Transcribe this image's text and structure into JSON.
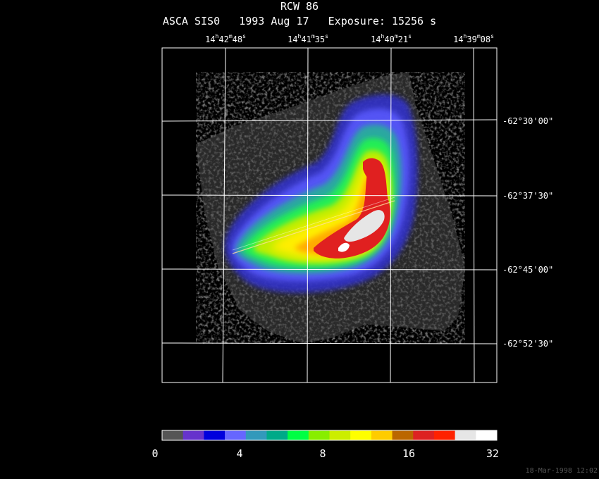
{
  "header": {
    "object": "RCW 86",
    "info": "ASCA SIS0   1993 Aug 17   Exposure: 15256 s"
  },
  "ra_ticks": [
    {
      "h": "14",
      "m": "42",
      "s": "48"
    },
    {
      "h": "14",
      "m": "41",
      "s": "35"
    },
    {
      "h": "14",
      "m": "40",
      "s": "21"
    },
    {
      "h": "14",
      "m": "39",
      "s": "08"
    }
  ],
  "dec_ticks": [
    "-62°30'00\"",
    "-62°37'30\"",
    "-62°45'00\"",
    "-62°52'30\""
  ],
  "colorbar": {
    "labels": [
      "0",
      "4",
      "8",
      "16",
      "32"
    ],
    "colors": [
      "#555555",
      "#6633cc",
      "#0000dd",
      "#6666ff",
      "#3399bb",
      "#00aa88",
      "#00ff44",
      "#88ee00",
      "#ccee00",
      "#ffff00",
      "#ffcc00",
      "#bb6600",
      "#dd2222",
      "#ff2200",
      "#e6e6e6",
      "#ffffff"
    ]
  },
  "timestamp": "18-Mar-1998 12:02"
}
